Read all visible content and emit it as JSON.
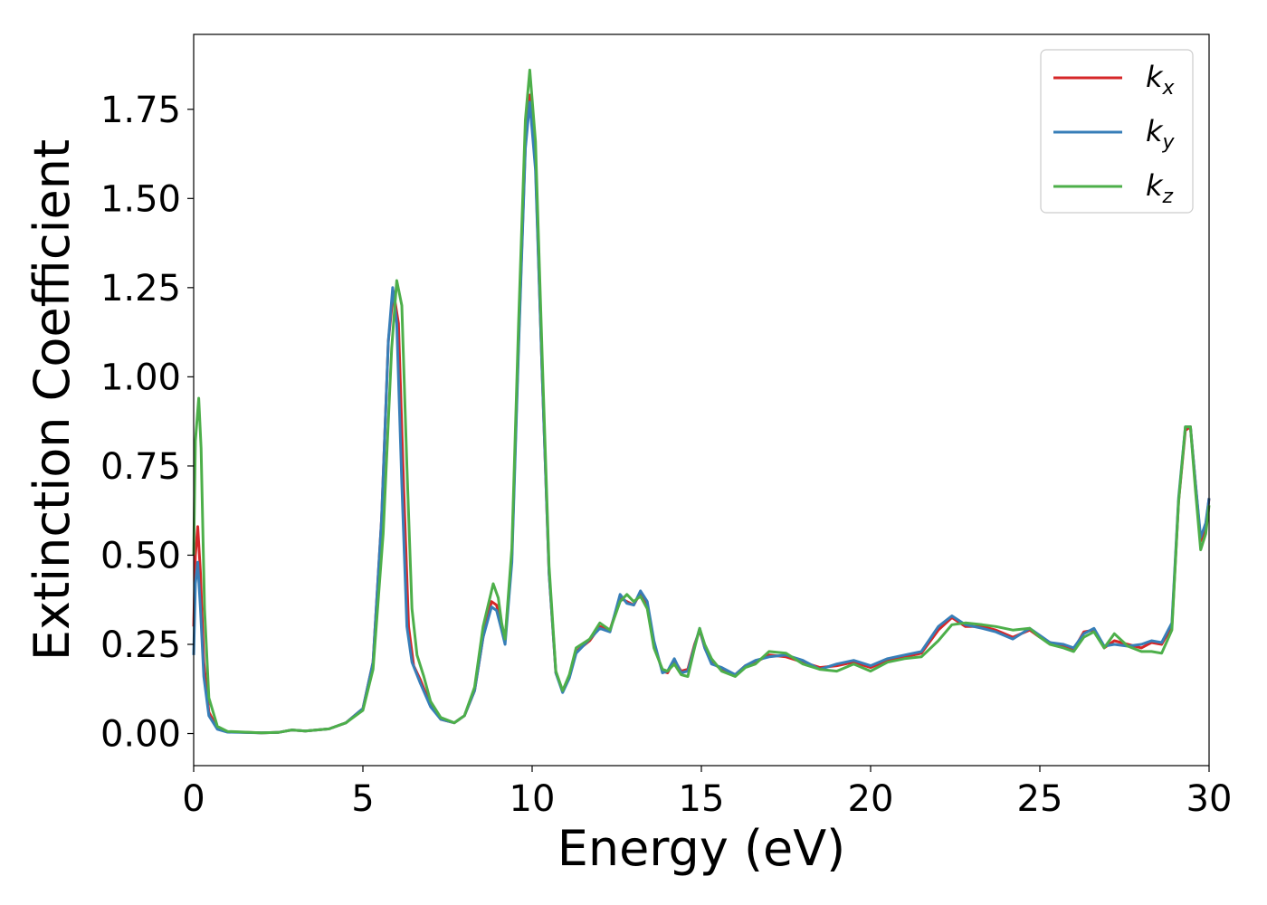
{
  "chart_data": {
    "type": "line",
    "xlabel": "Energy (eV)",
    "ylabel": "Extinction Coefficient",
    "xlim": [
      0,
      30
    ],
    "ylim": [
      -0.09,
      1.96
    ],
    "xticks": [
      "0",
      "5",
      "10",
      "15",
      "20",
      "25",
      "30"
    ],
    "xtick_values": [
      0,
      5,
      10,
      15,
      20,
      25,
      30
    ],
    "yticks": [
      "0.00",
      "0.25",
      "0.50",
      "0.75",
      "1.00",
      "1.25",
      "1.50",
      "1.75"
    ],
    "ytick_values": [
      0,
      0.25,
      0.5,
      0.75,
      1.0,
      1.25,
      1.5,
      1.75
    ],
    "grid": false,
    "legend_position": "top-right",
    "series": [
      {
        "name": "k",
        "subscript": "x",
        "color": "#d62728",
        "points": [
          [
            0,
            0.3
          ],
          [
            0.05,
            0.5
          ],
          [
            0.12,
            0.58
          ],
          [
            0.2,
            0.45
          ],
          [
            0.3,
            0.2
          ],
          [
            0.45,
            0.06
          ],
          [
            0.7,
            0.015
          ],
          [
            1.0,
            0.005
          ],
          [
            2.0,
            0.002
          ],
          [
            2.5,
            0.003
          ],
          [
            2.9,
            0.01
          ],
          [
            3.3,
            0.007
          ],
          [
            4.0,
            0.013
          ],
          [
            4.5,
            0.03
          ],
          [
            5.0,
            0.07
          ],
          [
            5.3,
            0.2
          ],
          [
            5.55,
            0.6
          ],
          [
            5.75,
            1.1
          ],
          [
            5.9,
            1.24
          ],
          [
            6.05,
            1.15
          ],
          [
            6.2,
            0.7
          ],
          [
            6.35,
            0.3
          ],
          [
            6.5,
            0.19
          ],
          [
            6.7,
            0.15
          ],
          [
            7.0,
            0.08
          ],
          [
            7.3,
            0.04
          ],
          [
            7.7,
            0.03
          ],
          [
            8.0,
            0.05
          ],
          [
            8.3,
            0.12
          ],
          [
            8.55,
            0.27
          ],
          [
            8.8,
            0.37
          ],
          [
            8.95,
            0.36
          ],
          [
            9.1,
            0.3
          ],
          [
            9.2,
            0.26
          ],
          [
            9.4,
            0.5
          ],
          [
            9.6,
            1.1
          ],
          [
            9.8,
            1.65
          ],
          [
            9.93,
            1.79
          ],
          [
            10.1,
            1.6
          ],
          [
            10.3,
            1.0
          ],
          [
            10.5,
            0.45
          ],
          [
            10.7,
            0.17
          ],
          [
            10.9,
            0.12
          ],
          [
            11.1,
            0.16
          ],
          [
            11.3,
            0.23
          ],
          [
            11.7,
            0.26
          ],
          [
            12.0,
            0.3
          ],
          [
            12.3,
            0.29
          ],
          [
            12.6,
            0.38
          ],
          [
            12.8,
            0.37
          ],
          [
            13.0,
            0.36
          ],
          [
            13.2,
            0.395
          ],
          [
            13.4,
            0.36
          ],
          [
            13.6,
            0.25
          ],
          [
            13.85,
            0.175
          ],
          [
            14.0,
            0.17
          ],
          [
            14.2,
            0.205
          ],
          [
            14.4,
            0.175
          ],
          [
            14.6,
            0.18
          ],
          [
            14.8,
            0.25
          ],
          [
            14.95,
            0.29
          ],
          [
            15.1,
            0.24
          ],
          [
            15.3,
            0.2
          ],
          [
            15.6,
            0.18
          ],
          [
            16.0,
            0.165
          ],
          [
            16.3,
            0.19
          ],
          [
            16.6,
            0.2
          ],
          [
            17.0,
            0.22
          ],
          [
            17.5,
            0.215
          ],
          [
            18.0,
            0.2
          ],
          [
            18.5,
            0.185
          ],
          [
            19.0,
            0.19
          ],
          [
            19.5,
            0.2
          ],
          [
            20.0,
            0.185
          ],
          [
            20.5,
            0.205
          ],
          [
            21.0,
            0.215
          ],
          [
            21.5,
            0.225
          ],
          [
            22.0,
            0.29
          ],
          [
            22.4,
            0.325
          ],
          [
            22.8,
            0.3
          ],
          [
            23.3,
            0.3
          ],
          [
            23.7,
            0.29
          ],
          [
            24.2,
            0.27
          ],
          [
            24.7,
            0.29
          ],
          [
            25.0,
            0.27
          ],
          [
            25.3,
            0.255
          ],
          [
            25.7,
            0.245
          ],
          [
            26.0,
            0.235
          ],
          [
            26.3,
            0.285
          ],
          [
            26.6,
            0.29
          ],
          [
            26.9,
            0.24
          ],
          [
            27.2,
            0.26
          ],
          [
            27.6,
            0.25
          ],
          [
            28.0,
            0.24
          ],
          [
            28.3,
            0.255
          ],
          [
            28.6,
            0.25
          ],
          [
            28.9,
            0.3
          ],
          [
            29.1,
            0.65
          ],
          [
            29.3,
            0.85
          ],
          [
            29.45,
            0.86
          ],
          [
            29.6,
            0.7
          ],
          [
            29.75,
            0.54
          ],
          [
            29.9,
            0.58
          ],
          [
            30.0,
            0.66
          ]
        ]
      },
      {
        "name": "k",
        "subscript": "y",
        "color": "#377eb8",
        "points": [
          [
            0,
            0.22
          ],
          [
            0.05,
            0.42
          ],
          [
            0.12,
            0.48
          ],
          [
            0.2,
            0.35
          ],
          [
            0.3,
            0.16
          ],
          [
            0.45,
            0.05
          ],
          [
            0.7,
            0.012
          ],
          [
            1.0,
            0.004
          ],
          [
            2.0,
            0.002
          ],
          [
            2.5,
            0.003
          ],
          [
            2.9,
            0.01
          ],
          [
            3.3,
            0.007
          ],
          [
            4.0,
            0.013
          ],
          [
            4.5,
            0.03
          ],
          [
            5.0,
            0.07
          ],
          [
            5.3,
            0.2
          ],
          [
            5.55,
            0.6
          ],
          [
            5.75,
            1.1
          ],
          [
            5.88,
            1.25
          ],
          [
            6.0,
            1.15
          ],
          [
            6.15,
            0.7
          ],
          [
            6.3,
            0.3
          ],
          [
            6.45,
            0.2
          ],
          [
            6.7,
            0.14
          ],
          [
            7.0,
            0.075
          ],
          [
            7.3,
            0.04
          ],
          [
            7.7,
            0.03
          ],
          [
            8.0,
            0.05
          ],
          [
            8.3,
            0.12
          ],
          [
            8.55,
            0.27
          ],
          [
            8.8,
            0.355
          ],
          [
            8.95,
            0.345
          ],
          [
            9.1,
            0.29
          ],
          [
            9.2,
            0.25
          ],
          [
            9.4,
            0.48
          ],
          [
            9.6,
            1.08
          ],
          [
            9.8,
            1.64
          ],
          [
            9.93,
            1.77
          ],
          [
            10.1,
            1.58
          ],
          [
            10.3,
            1.0
          ],
          [
            10.5,
            0.45
          ],
          [
            10.7,
            0.17
          ],
          [
            10.9,
            0.115
          ],
          [
            11.1,
            0.155
          ],
          [
            11.3,
            0.225
          ],
          [
            11.7,
            0.265
          ],
          [
            12.0,
            0.295
          ],
          [
            12.3,
            0.285
          ],
          [
            12.6,
            0.39
          ],
          [
            12.8,
            0.365
          ],
          [
            13.0,
            0.36
          ],
          [
            13.2,
            0.4
          ],
          [
            13.4,
            0.37
          ],
          [
            13.6,
            0.26
          ],
          [
            13.85,
            0.17
          ],
          [
            14.0,
            0.175
          ],
          [
            14.2,
            0.21
          ],
          [
            14.4,
            0.17
          ],
          [
            14.6,
            0.175
          ],
          [
            14.8,
            0.245
          ],
          [
            14.95,
            0.295
          ],
          [
            15.1,
            0.24
          ],
          [
            15.3,
            0.195
          ],
          [
            15.6,
            0.185
          ],
          [
            16.0,
            0.165
          ],
          [
            16.3,
            0.19
          ],
          [
            16.6,
            0.205
          ],
          [
            17.0,
            0.215
          ],
          [
            17.5,
            0.22
          ],
          [
            18.0,
            0.205
          ],
          [
            18.5,
            0.18
          ],
          [
            19.0,
            0.195
          ],
          [
            19.5,
            0.205
          ],
          [
            20.0,
            0.19
          ],
          [
            20.5,
            0.21
          ],
          [
            21.0,
            0.22
          ],
          [
            21.5,
            0.23
          ],
          [
            22.0,
            0.3
          ],
          [
            22.4,
            0.33
          ],
          [
            22.8,
            0.305
          ],
          [
            23.3,
            0.295
          ],
          [
            23.7,
            0.285
          ],
          [
            24.2,
            0.265
          ],
          [
            24.7,
            0.295
          ],
          [
            25.0,
            0.275
          ],
          [
            25.3,
            0.255
          ],
          [
            25.7,
            0.25
          ],
          [
            26.0,
            0.24
          ],
          [
            26.3,
            0.28
          ],
          [
            26.6,
            0.295
          ],
          [
            26.9,
            0.245
          ],
          [
            27.2,
            0.25
          ],
          [
            27.6,
            0.245
          ],
          [
            28.0,
            0.25
          ],
          [
            28.3,
            0.26
          ],
          [
            28.6,
            0.255
          ],
          [
            28.9,
            0.31
          ],
          [
            29.1,
            0.66
          ],
          [
            29.3,
            0.86
          ],
          [
            29.45,
            0.86
          ],
          [
            29.6,
            0.7
          ],
          [
            29.75,
            0.55
          ],
          [
            29.9,
            0.59
          ],
          [
            30.0,
            0.66
          ]
        ]
      },
      {
        "name": "k",
        "subscript": "z",
        "color": "#4daf4a",
        "points": [
          [
            0,
            0.5
          ],
          [
            0.05,
            0.82
          ],
          [
            0.15,
            0.94
          ],
          [
            0.22,
            0.8
          ],
          [
            0.32,
            0.35
          ],
          [
            0.45,
            0.1
          ],
          [
            0.7,
            0.02
          ],
          [
            1.0,
            0.006
          ],
          [
            2.0,
            0.002
          ],
          [
            2.5,
            0.003
          ],
          [
            2.9,
            0.01
          ],
          [
            3.3,
            0.007
          ],
          [
            4.0,
            0.013
          ],
          [
            4.5,
            0.03
          ],
          [
            5.0,
            0.065
          ],
          [
            5.3,
            0.18
          ],
          [
            5.6,
            0.56
          ],
          [
            5.85,
            1.08
          ],
          [
            6.0,
            1.27
          ],
          [
            6.15,
            1.2
          ],
          [
            6.3,
            0.75
          ],
          [
            6.45,
            0.35
          ],
          [
            6.6,
            0.22
          ],
          [
            6.8,
            0.16
          ],
          [
            7.0,
            0.09
          ],
          [
            7.3,
            0.045
          ],
          [
            7.7,
            0.03
          ],
          [
            8.0,
            0.05
          ],
          [
            8.3,
            0.13
          ],
          [
            8.55,
            0.3
          ],
          [
            8.85,
            0.42
          ],
          [
            9.0,
            0.38
          ],
          [
            9.1,
            0.31
          ],
          [
            9.2,
            0.265
          ],
          [
            9.4,
            0.52
          ],
          [
            9.6,
            1.15
          ],
          [
            9.8,
            1.72
          ],
          [
            9.93,
            1.86
          ],
          [
            10.1,
            1.66
          ],
          [
            10.3,
            1.05
          ],
          [
            10.5,
            0.47
          ],
          [
            10.7,
            0.175
          ],
          [
            10.9,
            0.12
          ],
          [
            11.1,
            0.165
          ],
          [
            11.3,
            0.24
          ],
          [
            11.7,
            0.265
          ],
          [
            12.0,
            0.31
          ],
          [
            12.3,
            0.29
          ],
          [
            12.6,
            0.37
          ],
          [
            12.8,
            0.39
          ],
          [
            13.0,
            0.37
          ],
          [
            13.2,
            0.385
          ],
          [
            13.4,
            0.35
          ],
          [
            13.6,
            0.24
          ],
          [
            13.85,
            0.18
          ],
          [
            14.0,
            0.175
          ],
          [
            14.2,
            0.195
          ],
          [
            14.4,
            0.165
          ],
          [
            14.6,
            0.16
          ],
          [
            14.8,
            0.24
          ],
          [
            14.95,
            0.295
          ],
          [
            15.1,
            0.25
          ],
          [
            15.3,
            0.21
          ],
          [
            15.6,
            0.175
          ],
          [
            16.0,
            0.16
          ],
          [
            16.3,
            0.185
          ],
          [
            16.6,
            0.195
          ],
          [
            17.0,
            0.23
          ],
          [
            17.5,
            0.225
          ],
          [
            18.0,
            0.195
          ],
          [
            18.5,
            0.18
          ],
          [
            19.0,
            0.175
          ],
          [
            19.5,
            0.195
          ],
          [
            20.0,
            0.175
          ],
          [
            20.5,
            0.2
          ],
          [
            21.0,
            0.21
          ],
          [
            21.5,
            0.215
          ],
          [
            22.0,
            0.26
          ],
          [
            22.4,
            0.305
          ],
          [
            22.8,
            0.31
          ],
          [
            23.3,
            0.305
          ],
          [
            23.7,
            0.3
          ],
          [
            24.2,
            0.29
          ],
          [
            24.7,
            0.295
          ],
          [
            25.0,
            0.27
          ],
          [
            25.3,
            0.25
          ],
          [
            25.7,
            0.24
          ],
          [
            26.0,
            0.23
          ],
          [
            26.3,
            0.27
          ],
          [
            26.6,
            0.285
          ],
          [
            26.9,
            0.24
          ],
          [
            27.2,
            0.28
          ],
          [
            27.6,
            0.245
          ],
          [
            28.0,
            0.23
          ],
          [
            28.3,
            0.23
          ],
          [
            28.6,
            0.225
          ],
          [
            28.9,
            0.29
          ],
          [
            29.1,
            0.65
          ],
          [
            29.3,
            0.86
          ],
          [
            29.45,
            0.86
          ],
          [
            29.6,
            0.68
          ],
          [
            29.75,
            0.515
          ],
          [
            29.9,
            0.56
          ],
          [
            30.0,
            0.64
          ]
        ]
      }
    ]
  }
}
